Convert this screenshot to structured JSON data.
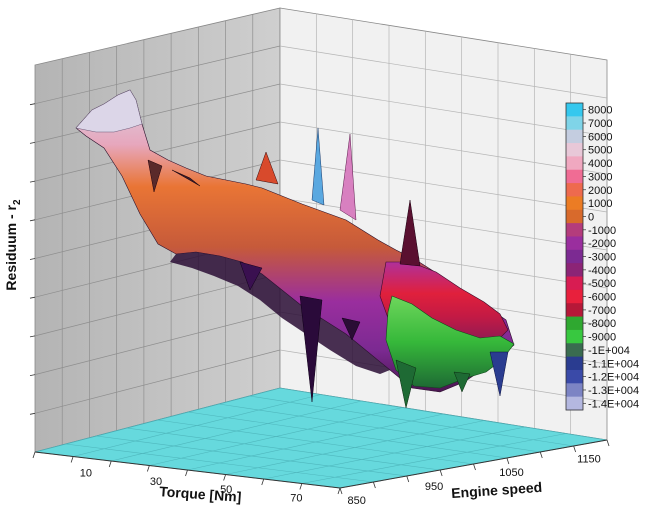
{
  "chart_data": {
    "type": "surface",
    "ylabel": "Residuum - r",
    "ylabel_subscript": "2",
    "xlabel": "Torque [Nm]",
    "zlabel": "Engine speed",
    "x_ticks": [
      "10",
      "30",
      "50",
      "70"
    ],
    "z_ticks": [
      "850",
      "950",
      "1050",
      "1150"
    ],
    "colorbar": {
      "levels": [
        "8000",
        "7000",
        "6000",
        "5000",
        "4000",
        "3000",
        "2000",
        "1000",
        "0",
        "-1000",
        "-2000",
        "-3000",
        "-4000",
        "-5000",
        "-6000",
        "-7000",
        "-8000",
        "-9000",
        "-1E+004",
        "-1.1E+004",
        "-1.2E+004",
        "-1.3E+004",
        "-1.4E+004"
      ],
      "colors": [
        "#35c8ee",
        "#7fd4e8",
        "#c4cde0",
        "#e8c8d8",
        "#f0a8c0",
        "#f06c94",
        "#ee6a4e",
        "#ec7c24",
        "#d86a2c",
        "#b43c7c",
        "#9a2e9e",
        "#7c2a92",
        "#8c2476",
        "#d81c52",
        "#e8203c",
        "#b61838",
        "#2fa830",
        "#38c840",
        "#3a6c50",
        "#2a3c90",
        "#3a4aa8",
        "#7c84c4",
        "#b4b8e0"
      ],
      "grid": true
    },
    "grid": true,
    "floor_color": "#66d9dd"
  }
}
